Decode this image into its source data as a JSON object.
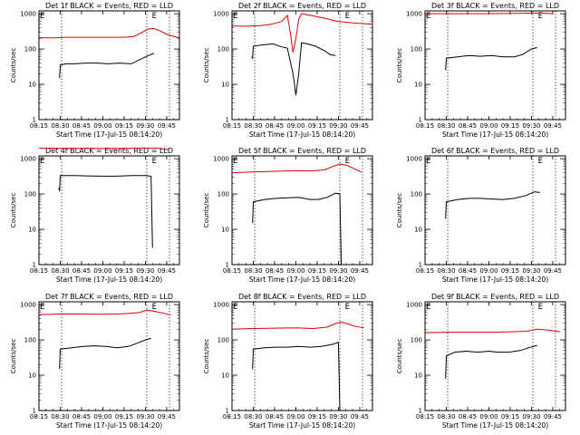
{
  "chart_data": {
    "type": "line",
    "x_tick_labels": [
      "08:15",
      "08:30",
      "08:45",
      "09:00",
      "09:15",
      "09:30",
      "09:45"
    ],
    "x_ticks_min": [
      15,
      30,
      45,
      60,
      75,
      90,
      105
    ],
    "xlim_min": [
      15,
      114
    ],
    "xlabel": "Start Time (17-Jul-15 08:14:20)",
    "ylabel": "Counts/sec",
    "ylim": [
      1,
      1200
    ],
    "y_tick_labels": [
      "1",
      "10",
      "100",
      "1000"
    ],
    "y_ticks": [
      1,
      10,
      100,
      1000
    ],
    "y_scale": "log",
    "series_colors": {
      "events": "#000000",
      "lld": "#e00000"
    },
    "event_line_min": [
      31,
      91,
      107
    ],
    "marker_label": "E",
    "marker_min": [
      15,
      94
    ],
    "panels": [
      {
        "title": "Det 1f BLACK = Events, RED = LLD",
        "events": [
          [
            29,
            null
          ],
          [
            29.5,
            15
          ],
          [
            30,
            35
          ],
          [
            34,
            38
          ],
          [
            40,
            38
          ],
          [
            48,
            40
          ],
          [
            56,
            40
          ],
          [
            64,
            38
          ],
          [
            72,
            40
          ],
          [
            80,
            38
          ],
          [
            86,
            50
          ],
          [
            92,
            65
          ],
          [
            96,
            75
          ]
        ],
        "lld": [
          [
            15,
            210
          ],
          [
            25,
            205
          ],
          [
            35,
            215
          ],
          [
            45,
            215
          ],
          [
            55,
            215
          ],
          [
            65,
            215
          ],
          [
            75,
            215
          ],
          [
            82,
            225
          ],
          [
            88,
            300
          ],
          [
            92,
            370
          ],
          [
            96,
            380
          ],
          [
            100,
            330
          ],
          [
            106,
            250
          ],
          [
            114,
            205
          ]
        ]
      },
      {
        "title": "Det 2f BLACK = Events, RED = LLD",
        "events": [
          [
            29,
            60
          ],
          [
            29.5,
            55
          ],
          [
            30,
            120
          ],
          [
            36,
            130
          ],
          [
            44,
            140
          ],
          [
            50,
            115
          ],
          [
            54,
            105
          ],
          [
            58,
            20
          ],
          [
            60,
            5
          ],
          [
            62,
            20
          ],
          [
            64,
            150
          ],
          [
            68,
            140
          ],
          [
            74,
            120
          ],
          [
            80,
            90
          ],
          [
            84,
            70
          ],
          [
            88,
            65
          ]
        ],
        "lld": [
          [
            15,
            450
          ],
          [
            25,
            440
          ],
          [
            35,
            460
          ],
          [
            43,
            500
          ],
          [
            50,
            600
          ],
          [
            54,
            900
          ],
          [
            56,
            300
          ],
          [
            58,
            80
          ],
          [
            60,
            200
          ],
          [
            62,
            700
          ],
          [
            64,
            1000
          ],
          [
            70,
            900
          ],
          [
            80,
            750
          ],
          [
            90,
            600
          ],
          [
            100,
            550
          ],
          [
            114,
            500
          ]
        ]
      },
      {
        "title": "Det 3f BLACK = Events, RED = LLD",
        "events": [
          [
            29,
            null
          ],
          [
            29.5,
            25
          ],
          [
            30,
            55
          ],
          [
            38,
            60
          ],
          [
            46,
            65
          ],
          [
            54,
            62
          ],
          [
            62,
            65
          ],
          [
            70,
            60
          ],
          [
            78,
            60
          ],
          [
            84,
            70
          ],
          [
            90,
            100
          ],
          [
            94,
            110
          ]
        ],
        "lld": [
          [
            15,
            1000
          ],
          [
            35,
            1000
          ],
          [
            55,
            1000
          ],
          [
            75,
            1010
          ],
          [
            95,
            1050
          ],
          [
            105,
            1000
          ]
        ]
      },
      {
        "title": "Det 4f BLACK = Events, RED = LLD",
        "events": [
          [
            29,
            150
          ],
          [
            29.5,
            120
          ],
          [
            30,
            330
          ],
          [
            40,
            330
          ],
          [
            50,
            325
          ],
          [
            60,
            320
          ],
          [
            70,
            320
          ],
          [
            80,
            330
          ],
          [
            90,
            330
          ],
          [
            94,
            320
          ],
          [
            95,
            3
          ]
        ],
        "lld": [
          [
            15,
            2000
          ],
          [
            35,
            1950
          ],
          [
            55,
            1950
          ],
          [
            75,
            1950
          ],
          [
            90,
            2000
          ],
          [
            98,
            2000
          ],
          [
            106,
            1800
          ]
        ]
      },
      {
        "title": "Det 5f BLACK = Events, RED = LLD",
        "events": [
          [
            29,
            null
          ],
          [
            29.5,
            15
          ],
          [
            30,
            60
          ],
          [
            38,
            70
          ],
          [
            46,
            75
          ],
          [
            54,
            78
          ],
          [
            62,
            80
          ],
          [
            70,
            70
          ],
          [
            76,
            70
          ],
          [
            82,
            80
          ],
          [
            88,
            105
          ],
          [
            91,
            100
          ],
          [
            92,
            1
          ]
        ],
        "lld": [
          [
            15,
            400
          ],
          [
            30,
            420
          ],
          [
            45,
            440
          ],
          [
            60,
            460
          ],
          [
            70,
            450
          ],
          [
            80,
            480
          ],
          [
            86,
            600
          ],
          [
            91,
            700
          ],
          [
            96,
            650
          ],
          [
            102,
            500
          ],
          [
            106,
            420
          ]
        ]
      },
      {
        "title": "Det 6f BLACK = Events, RED = LLD",
        "events": [
          [
            29,
            null
          ],
          [
            29.5,
            20
          ],
          [
            30,
            60
          ],
          [
            38,
            70
          ],
          [
            46,
            75
          ],
          [
            54,
            75
          ],
          [
            62,
            72
          ],
          [
            70,
            70
          ],
          [
            78,
            75
          ],
          [
            86,
            90
          ],
          [
            92,
            115
          ],
          [
            96,
            110
          ]
        ],
        "lld": []
      },
      {
        "title": "Det 7f BLACK = Events, RED = LLD",
        "events": [
          [
            29,
            null
          ],
          [
            29.5,
            15
          ],
          [
            30,
            55
          ],
          [
            38,
            60
          ],
          [
            46,
            65
          ],
          [
            54,
            68
          ],
          [
            62,
            65
          ],
          [
            70,
            60
          ],
          [
            78,
            65
          ],
          [
            84,
            80
          ],
          [
            90,
            100
          ],
          [
            94,
            110
          ]
        ],
        "lld": [
          [
            15,
            520
          ],
          [
            30,
            540
          ],
          [
            45,
            540
          ],
          [
            60,
            530
          ],
          [
            70,
            540
          ],
          [
            78,
            560
          ],
          [
            86,
            600
          ],
          [
            91,
            700
          ],
          [
            96,
            650
          ],
          [
            102,
            580
          ],
          [
            108,
            500
          ]
        ]
      },
      {
        "title": "Det 8f BLACK = Events, RED = LLD",
        "events": [
          [
            29,
            null
          ],
          [
            29.5,
            15
          ],
          [
            30,
            55
          ],
          [
            38,
            60
          ],
          [
            46,
            62
          ],
          [
            54,
            62
          ],
          [
            62,
            65
          ],
          [
            70,
            62
          ],
          [
            78,
            65
          ],
          [
            86,
            75
          ],
          [
            90,
            85
          ],
          [
            91,
            1
          ]
        ],
        "lld": [
          [
            15,
            200
          ],
          [
            30,
            210
          ],
          [
            45,
            215
          ],
          [
            60,
            220
          ],
          [
            72,
            210
          ],
          [
            82,
            230
          ],
          [
            88,
            290
          ],
          [
            92,
            320
          ],
          [
            96,
            290
          ],
          [
            102,
            240
          ],
          [
            108,
            220
          ]
        ]
      },
      {
        "title": "Det 9f BLACK = Events, RED = LLD",
        "events": [
          [
            29,
            null
          ],
          [
            29.5,
            8
          ],
          [
            30,
            35
          ],
          [
            36,
            45
          ],
          [
            44,
            48
          ],
          [
            52,
            45
          ],
          [
            60,
            48
          ],
          [
            66,
            45
          ],
          [
            74,
            45
          ],
          [
            82,
            50
          ],
          [
            88,
            60
          ],
          [
            94,
            70
          ]
        ],
        "lld": [
          [
            15,
            160
          ],
          [
            30,
            165
          ],
          [
            45,
            165
          ],
          [
            60,
            165
          ],
          [
            75,
            170
          ],
          [
            86,
            175
          ],
          [
            94,
            200
          ],
          [
            102,
            190
          ],
          [
            110,
            170
          ]
        ]
      }
    ]
  }
}
